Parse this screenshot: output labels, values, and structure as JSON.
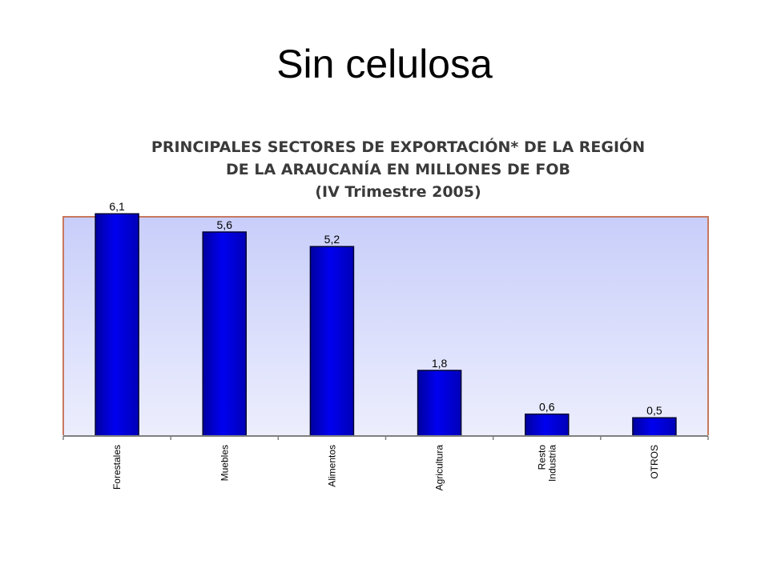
{
  "slide": {
    "title": "Sin celulosa"
  },
  "chart_data": {
    "type": "bar",
    "title_lines": [
      "PRINCIPALES SECTORES DE EXPORTACIÓN* DE LA REGIÓN",
      "DE LA ARAUCANÍA EN MILLONES DE FOB",
      "(IV Trimestre 2005)"
    ],
    "categories": [
      [
        "Forestales"
      ],
      [
        "Muebles"
      ],
      [
        "Alimentos"
      ],
      [
        "Agricultura"
      ],
      [
        "Resto",
        "Industria"
      ],
      [
        "OTROS"
      ]
    ],
    "values": [
      6.1,
      5.6,
      5.2,
      1.8,
      0.6,
      0.5
    ],
    "value_labels": [
      "6,1",
      "5,6",
      "5,2",
      "1,8",
      "0,6",
      "0,5"
    ],
    "ylim": [
      0,
      7.5
    ],
    "grid": false,
    "colors": {
      "bar_fill": "#0000e0",
      "bar_edge": "#000033",
      "plot_background_top": "#c8cefa",
      "plot_background_bottom": "#eceefd",
      "frame": "#c87860"
    }
  }
}
